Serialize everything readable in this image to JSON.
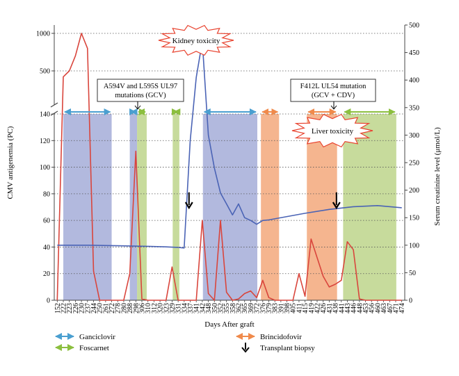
{
  "chart_data": {
    "type": "line",
    "xlabel": "Days After graft",
    "ylabel_left": "CMV antigenemia (PC)",
    "ylabel_right": "Serum creatinine level (μmol/L)",
    "x_ticks": [
      "152",
      "222",
      "223",
      "226",
      "230",
      "237",
      "244",
      "250",
      "261",
      "272",
      "278",
      "280",
      "288",
      "298",
      "306",
      "310",
      "312",
      "320",
      "323",
      "329",
      "331",
      "334",
      "337",
      "341",
      "342",
      "348",
      "350",
      "352",
      "355",
      "358",
      "362",
      "365",
      "369",
      "372",
      "376",
      "379",
      "383",
      "391",
      "398",
      "405",
      "411",
      "415",
      "419",
      "422",
      "426",
      "431",
      "438",
      "441",
      "443",
      "446",
      "448",
      "453",
      "456",
      "460",
      "463",
      "467",
      "471",
      "474"
    ],
    "left_axis": {
      "lower_range": [
        0,
        140
      ],
      "lower_ticks": [
        0,
        20,
        40,
        60,
        80,
        100,
        120,
        140
      ],
      "upper_range": [
        500,
        1000
      ],
      "upper_ticks": [
        500,
        1000
      ],
      "break_marks": true
    },
    "right_axis": {
      "range": [
        0,
        500
      ],
      "ticks": [
        0,
        50,
        100,
        150,
        200,
        250,
        300,
        350,
        400,
        450,
        500
      ]
    },
    "grid": "dotted horizontal",
    "series": [
      {
        "name": "CMV antigenemia",
        "axis": "left",
        "color": "#d9453c",
        "points": [
          [
            0,
            0
          ],
          [
            1,
            450
          ],
          [
            2,
            500
          ],
          [
            3,
            700
          ],
          [
            4,
            1000
          ],
          [
            5,
            800
          ],
          [
            6,
            22
          ],
          [
            7,
            0
          ],
          [
            8,
            0
          ],
          [
            9,
            0
          ],
          [
            10,
            0
          ],
          [
            11,
            0
          ],
          [
            12,
            20
          ],
          [
            13,
            112
          ],
          [
            14,
            1
          ],
          [
            15,
            0
          ],
          [
            16,
            0
          ],
          [
            17,
            0
          ],
          [
            18,
            0
          ],
          [
            19,
            25
          ],
          [
            20,
            0
          ],
          [
            21,
            0
          ],
          [
            22,
            0
          ],
          [
            23,
            0
          ],
          [
            24,
            60
          ],
          [
            25,
            5
          ],
          [
            26,
            0
          ],
          [
            27,
            60
          ],
          [
            28,
            6
          ],
          [
            29,
            0
          ],
          [
            30,
            1
          ],
          [
            31,
            5
          ],
          [
            32,
            7
          ],
          [
            33,
            2
          ],
          [
            34,
            15
          ],
          [
            35,
            2
          ],
          [
            36,
            0
          ],
          [
            37,
            0
          ],
          [
            38,
            0
          ],
          [
            39,
            0
          ],
          [
            40,
            20
          ],
          [
            41,
            3
          ],
          [
            42,
            46
          ],
          [
            43,
            32
          ],
          [
            44,
            18
          ],
          [
            45,
            10
          ],
          [
            46,
            12
          ],
          [
            47,
            15
          ],
          [
            48,
            44
          ],
          [
            49,
            38
          ],
          [
            50,
            1
          ],
          [
            51,
            0
          ],
          [
            52,
            0
          ],
          [
            53,
            0
          ],
          [
            54,
            0
          ],
          [
            55,
            0
          ],
          [
            56,
            0
          ],
          [
            57,
            0
          ]
        ]
      },
      {
        "name": "Serum creatinine level",
        "axis": "right",
        "color": "#4a63b5",
        "points": [
          [
            0,
            100
          ],
          [
            5,
            100
          ],
          [
            10,
            99
          ],
          [
            15,
            98
          ],
          [
            18,
            97
          ],
          [
            20,
            96
          ],
          [
            21,
            95
          ],
          [
            22,
            290
          ],
          [
            23,
            405
          ],
          [
            24,
            470
          ],
          [
            25,
            300
          ],
          [
            26,
            240
          ],
          [
            27,
            195
          ],
          [
            28,
            175
          ],
          [
            29,
            155
          ],
          [
            30,
            175
          ],
          [
            31,
            150
          ],
          [
            32,
            145
          ],
          [
            33,
            138
          ],
          [
            34,
            145
          ],
          [
            35,
            146
          ],
          [
            38,
            152
          ],
          [
            41,
            158
          ],
          [
            45,
            165
          ],
          [
            49,
            170
          ],
          [
            53,
            172
          ],
          [
            57,
            168
          ]
        ]
      }
    ],
    "treatment_bands": [
      {
        "drug": "Ganciclovir",
        "color": "#b2b9de",
        "from": 1.5,
        "to": 9.5,
        "arrow_from": 1.5,
        "arrow_to": 9.5
      },
      {
        "drug": "Ganciclovir",
        "color": "#b2b9de",
        "from": 12.5,
        "to": 13.7,
        "arrow_from": 12.5,
        "arrow_to": 13.7
      },
      {
        "drug": "Foscarnet",
        "color": "#c7db9c",
        "from": 13.7,
        "to": 15.3,
        "arrow_from": 13.7,
        "arrow_to": 15.3
      },
      {
        "drug": "Foscarnet",
        "color": "#c7db9c",
        "from": 19.6,
        "to": 20.7,
        "arrow_from": 19.6,
        "arrow_to": 20.7
      },
      {
        "drug": "Ganciclovir",
        "color": "#b2b9de",
        "from": 24.6,
        "to": 33.6,
        "arrow_from": 24.6,
        "arrow_to": 33.6
      },
      {
        "drug": "Brincidofovir",
        "color": "#f5b58f",
        "from": 34.2,
        "to": 37.2,
        "arrow_from": 34.2,
        "arrow_to": 37.2
      },
      {
        "drug": "Brincidofovir",
        "color": "#f5b58f",
        "from": 41.8,
        "to": 46.8,
        "arrow_from": 41.8,
        "arrow_to": 46.8
      },
      {
        "drug": "Foscarnet",
        "color": "#c7db9c",
        "from": 47.8,
        "to": 56.6,
        "arrow_from": 47.8,
        "arrow_to": 56.6
      }
    ],
    "annotations": {
      "kidney_toxicity": "Kidney toxicity",
      "liver_toxicity": "Liver toxicity",
      "mutation_1": [
        "A594V and L595S UL97",
        "mutations (GCV)"
      ],
      "mutation_2": [
        "F412L UL54 mutation",
        "(GCV + CDV)"
      ],
      "biopsy_at": [
        22.3,
        46.7
      ]
    },
    "legend": [
      {
        "label": "Ganciclovir",
        "color": "#4a9fd0",
        "type": "double-arrow"
      },
      {
        "label": "Foscarnet",
        "color": "#8cbf3f",
        "type": "double-arrow"
      },
      {
        "label": "Brincidofovir",
        "color": "#f08a4b",
        "type": "double-arrow"
      },
      {
        "label": "Transplant biopsy",
        "color": "#000000",
        "type": "down-arrow"
      }
    ],
    "legend_position": "bottom"
  }
}
